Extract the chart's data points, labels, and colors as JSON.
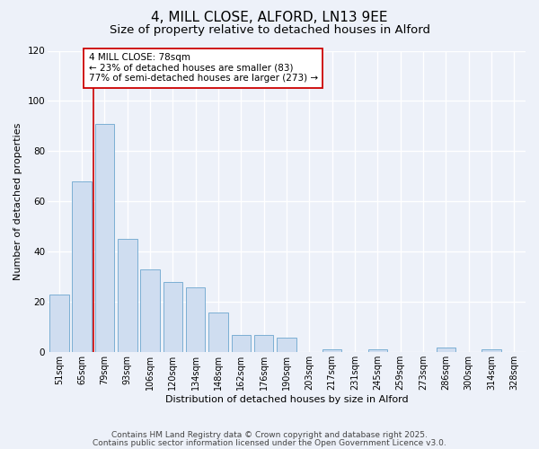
{
  "title": "4, MILL CLOSE, ALFORD, LN13 9EE",
  "subtitle": "Size of property relative to detached houses in Alford",
  "xlabel": "Distribution of detached houses by size in Alford",
  "ylabel": "Number of detached properties",
  "bar_labels": [
    "51sqm",
    "65sqm",
    "79sqm",
    "93sqm",
    "106sqm",
    "120sqm",
    "134sqm",
    "148sqm",
    "162sqm",
    "176sqm",
    "190sqm",
    "203sqm",
    "217sqm",
    "231sqm",
    "245sqm",
    "259sqm",
    "273sqm",
    "286sqm",
    "300sqm",
    "314sqm",
    "328sqm"
  ],
  "bar_values": [
    23,
    68,
    91,
    45,
    33,
    28,
    26,
    16,
    7,
    7,
    6,
    0,
    1,
    0,
    1,
    0,
    0,
    2,
    0,
    1,
    0
  ],
  "bar_color": "#cfddf0",
  "bar_edge_color": "#7bafd4",
  "bar_edge_width": 0.7,
  "background_color": "#edf1f9",
  "plot_bg_color": "#edf1f9",
  "grid_color": "#ffffff",
  "vline_x_index": 2,
  "vline_color": "#cc0000",
  "annotation_text": "4 MILL CLOSE: 78sqm\n← 23% of detached houses are smaller (83)\n77% of semi-detached houses are larger (273) →",
  "annotation_box_color": "#ffffff",
  "annotation_edge_color": "#cc0000",
  "ylim": [
    0,
    120
  ],
  "yticks": [
    0,
    20,
    40,
    60,
    80,
    100,
    120
  ],
  "footer1": "Contains HM Land Registry data © Crown copyright and database right 2025.",
  "footer2": "Contains public sector information licensed under the Open Government Licence v3.0.",
  "title_fontsize": 11,
  "subtitle_fontsize": 9.5,
  "annotation_fontsize": 7.5,
  "footer_fontsize": 6.5,
  "ylabel_fontsize": 8,
  "xlabel_fontsize": 8,
  "tick_fontsize": 7,
  "ytick_fontsize": 7.5
}
